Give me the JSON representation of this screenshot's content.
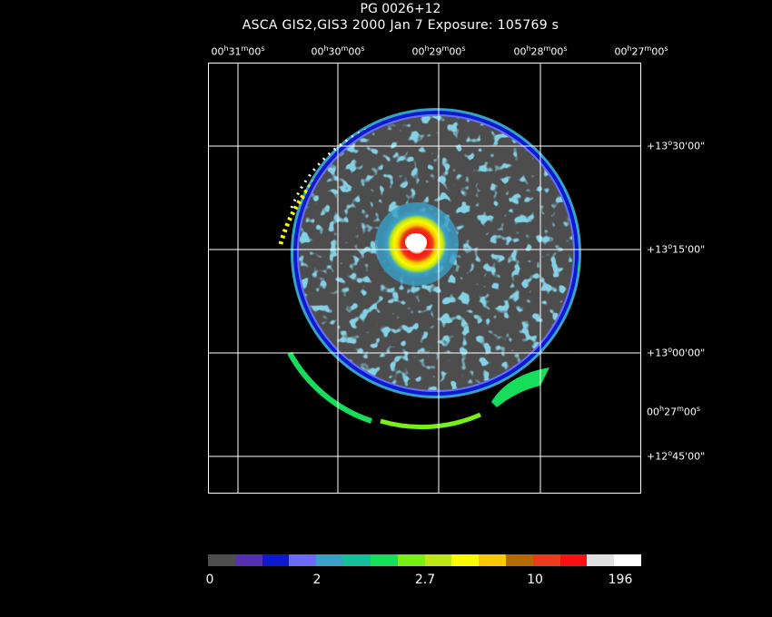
{
  "header": {
    "title": "PG 0026+12",
    "subtitle": "ASCA GIS2,GIS3   2000 Jan  7    Exposure: 105769 s"
  },
  "axes": {
    "ra_ticks": [
      {
        "h": "00",
        "m": "31",
        "s": "00"
      },
      {
        "h": "00",
        "m": "30",
        "s": "00"
      },
      {
        "h": "00",
        "m": "29",
        "s": "00"
      },
      {
        "h": "00",
        "m": "28",
        "s": "00"
      },
      {
        "h": "00",
        "m": "27",
        "s": "00"
      }
    ],
    "dec_ticks": [
      {
        "d": "+13",
        "m": "30",
        "s": "00"
      },
      {
        "d": "+13",
        "m": "15",
        "s": "00"
      },
      {
        "d": "+13",
        "m": "00",
        "s": "00"
      },
      {
        "d": "+12",
        "m": "45",
        "s": "00"
      }
    ],
    "ra_extra": {
      "h": "00",
      "m": "27",
      "s": "00"
    }
  },
  "colorbar": {
    "colors": [
      "#4d4d4d",
      "#5530b0",
      "#0a1ad0",
      "#6b6bfa",
      "#3aa0c8",
      "#13c09a",
      "#16de5a",
      "#78f016",
      "#bde615",
      "#fafa00",
      "#fac800",
      "#b46a00",
      "#ec3a1a",
      "#fa1010",
      "#e0e0e0",
      "#ffffff"
    ],
    "labels": [
      "0",
      "2",
      "2.7",
      "10",
      "196"
    ]
  }
}
